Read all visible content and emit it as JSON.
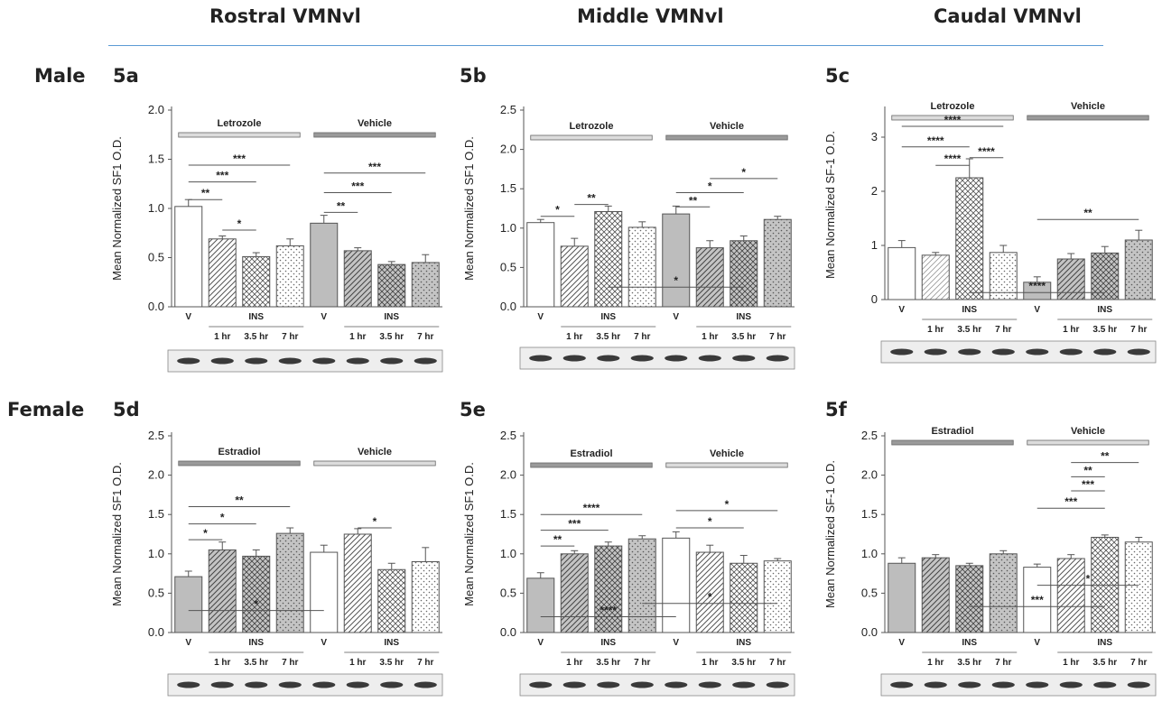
{
  "headers": [
    "Rostral VMNvl",
    "Middle VMNvl",
    "Caudal VMNvl"
  ],
  "row_labels": [
    "Male",
    "Female"
  ],
  "panel_labels": [
    "5a",
    "5b",
    "5c",
    "5d",
    "5e",
    "5f"
  ],
  "colors": {
    "divider": "#5b9bd5",
    "bar_outline": "#555555",
    "gray_fill": "#bdbdbd"
  },
  "chart_data": [
    {
      "type": "bar",
      "title": "",
      "ylabel": "Mean Normalized SF1 O.D.",
      "ylim": [
        0,
        2.0
      ],
      "yticks": [
        "0.0",
        "0.5",
        "1.0",
        "1.5",
        "2.0"
      ],
      "ytick_values": [
        0,
        0.5,
        1.0,
        1.5,
        2.0
      ],
      "categories": [
        "V",
        "1 hr",
        "3.5 hr",
        "7 hr",
        "V",
        "1 hr",
        "3.5 hr",
        "7 hr"
      ],
      "group_label": "INS",
      "values": [
        1.02,
        0.69,
        0.51,
        0.62,
        0.85,
        0.57,
        0.43,
        0.45
      ],
      "errors": [
        0.07,
        0.03,
        0.04,
        0.07,
        0.08,
        0.03,
        0.03,
        0.08
      ],
      "patterns": [
        "white",
        "diag",
        "cross",
        "dots",
        "gray",
        "graydiag",
        "graycross",
        "graydots"
      ],
      "treatments": [
        {
          "name": "Letrozole",
          "shade": "light"
        },
        {
          "name": "Vehicle",
          "shade": "dark"
        }
      ],
      "significance": [
        {
          "from": 0,
          "to": 1,
          "label": "**",
          "y": 1.09
        },
        {
          "from": 1,
          "to": 2,
          "label": "*",
          "y": 0.78
        },
        {
          "from": 0,
          "to": 2,
          "label": "***",
          "y": 1.27
        },
        {
          "from": 0,
          "to": 3,
          "label": "***",
          "y": 1.44
        },
        {
          "from": 4,
          "to": 5,
          "label": "**",
          "y": 0.96
        },
        {
          "from": 4,
          "to": 6,
          "label": "***",
          "y": 1.16
        },
        {
          "from": 4,
          "to": 7,
          "label": "***",
          "y": 1.36
        }
      ]
    },
    {
      "type": "bar",
      "title": "",
      "ylabel": "Mean Normalized SF1 O.D.",
      "ylim": [
        0,
        2.5
      ],
      "yticks": [
        "0.0",
        "0.5",
        "1.0",
        "1.5",
        "2.0",
        "2.5"
      ],
      "ytick_values": [
        0,
        0.5,
        1.0,
        1.5,
        2.0,
        2.5
      ],
      "categories": [
        "V",
        "1 hr",
        "3.5 hr",
        "7 hr",
        "V",
        "1 hr",
        "3.5 hr",
        "7 hr"
      ],
      "group_label": "INS",
      "values": [
        1.07,
        0.77,
        1.21,
        1.01,
        1.18,
        0.75,
        0.84,
        1.11
      ],
      "errors": [
        0.04,
        0.1,
        0.07,
        0.07,
        0.1,
        0.09,
        0.06,
        0.04
      ],
      "patterns": [
        "white",
        "diag",
        "cross",
        "dots",
        "gray",
        "graydiag",
        "graycross",
        "graydots"
      ],
      "treatments": [
        {
          "name": "Letrozole",
          "shade": "light"
        },
        {
          "name": "Vehicle",
          "shade": "dark"
        }
      ],
      "significance": [
        {
          "from": 0,
          "to": 1,
          "label": "*",
          "y": 1.15
        },
        {
          "from": 1,
          "to": 2,
          "label": "**",
          "y": 1.3
        },
        {
          "from": 4,
          "to": 5,
          "label": "**",
          "y": 1.27
        },
        {
          "from": 4,
          "to": 6,
          "label": "*",
          "y": 1.45
        },
        {
          "from": 5,
          "to": 7,
          "label": "*",
          "y": 1.63
        },
        {
          "from": 2,
          "to": 6,
          "label": "*",
          "y": 0.25
        }
      ]
    },
    {
      "type": "bar",
      "title": "",
      "ylabel": "Mean Normalized SF-1 O.D.",
      "ylim": [
        0,
        3.5
      ],
      "yticks": [
        "0",
        "1",
        "2",
        "3"
      ],
      "ytick_values": [
        0,
        1,
        2,
        3
      ],
      "categories": [
        "V",
        "1 hr",
        "3.5 hr",
        "7 hr",
        "V",
        "1 hr",
        "3.5 hr",
        "7 hr"
      ],
      "group_label": "INS",
      "values": [
        0.96,
        0.82,
        2.25,
        0.87,
        0.32,
        0.75,
        0.86,
        1.1
      ],
      "errors": [
        0.13,
        0.05,
        0.35,
        0.13,
        0.1,
        0.1,
        0.12,
        0.18
      ],
      "patterns": [
        "white",
        "lightdiag",
        "cross",
        "dots",
        "gray",
        "graydiag",
        "graycross",
        "graydots"
      ],
      "treatments": [
        {
          "name": "Letrozole",
          "shade": "light"
        },
        {
          "name": "Vehicle",
          "shade": "dark"
        }
      ],
      "significance": [
        {
          "from": 0,
          "to": 2,
          "label": "****",
          "y": 2.82
        },
        {
          "from": 1,
          "to": 2,
          "label": "****",
          "y": 2.48
        },
        {
          "from": 2,
          "to": 3,
          "label": "****",
          "y": 2.62
        },
        {
          "from": 0,
          "to": 3,
          "label": "****",
          "y": 3.2
        },
        {
          "from": 4,
          "to": 7,
          "label": "**",
          "y": 1.48
        },
        {
          "from": 2,
          "to": 6,
          "label": "****",
          "y": 0.13
        }
      ]
    },
    {
      "type": "bar",
      "title": "",
      "ylabel": "Mean Normalized SF1 O.D.",
      "ylim": [
        0,
        2.5
      ],
      "yticks": [
        "0.0",
        "0.5",
        "1.0",
        "1.5",
        "2.0",
        "2.5"
      ],
      "ytick_values": [
        0,
        0.5,
        1.0,
        1.5,
        2.0,
        2.5
      ],
      "categories": [
        "V",
        "1 hr",
        "3.5 hr",
        "7 hr",
        "V",
        "1 hr",
        "3.5 hr",
        "7 hr"
      ],
      "group_label": "INS",
      "values": [
        0.71,
        1.05,
        0.97,
        1.26,
        1.02,
        1.25,
        0.8,
        0.9
      ],
      "errors": [
        0.07,
        0.1,
        0.08,
        0.07,
        0.09,
        0.07,
        0.08,
        0.18
      ],
      "patterns": [
        "gray",
        "graydiag",
        "graycross",
        "graydots",
        "white",
        "diag",
        "cross",
        "dots"
      ],
      "treatments": [
        {
          "name": "Estradiol",
          "shade": "dark"
        },
        {
          "name": "Vehicle",
          "shade": "light"
        }
      ],
      "significance": [
        {
          "from": 0,
          "to": 1,
          "label": "*",
          "y": 1.18
        },
        {
          "from": 0,
          "to": 2,
          "label": "*",
          "y": 1.38
        },
        {
          "from": 0,
          "to": 3,
          "label": "**",
          "y": 1.6
        },
        {
          "from": 5,
          "to": 6,
          "label": "*",
          "y": 1.33
        },
        {
          "from": 0,
          "to": 4,
          "label": "*",
          "y": 0.28
        }
      ]
    },
    {
      "type": "bar",
      "title": "",
      "ylabel": "Mean Normalized SF1 O.D.",
      "ylim": [
        0,
        2.5
      ],
      "yticks": [
        "0.0",
        "0.5",
        "1.0",
        "1.5",
        "2.0",
        "2.5"
      ],
      "ytick_values": [
        0,
        0.5,
        1.0,
        1.5,
        2.0,
        2.5
      ],
      "categories": [
        "V",
        "1 hr",
        "3.5 hr",
        "7 hr",
        "V",
        "1 hr",
        "3.5 hr",
        "7 hr"
      ],
      "group_label": "INS",
      "values": [
        0.69,
        1.0,
        1.1,
        1.19,
        1.2,
        1.02,
        0.88,
        0.91
      ],
      "errors": [
        0.07,
        0.04,
        0.05,
        0.04,
        0.08,
        0.09,
        0.1,
        0.03
      ],
      "patterns": [
        "gray",
        "graydiag",
        "graycross",
        "graydots",
        "white",
        "diag",
        "cross",
        "dots"
      ],
      "treatments": [
        {
          "name": "Estradiol",
          "shade": "dark"
        },
        {
          "name": "Vehicle",
          "shade": "light"
        }
      ],
      "significance": [
        {
          "from": 0,
          "to": 1,
          "label": "**",
          "y": 1.1
        },
        {
          "from": 0,
          "to": 2,
          "label": "***",
          "y": 1.3
        },
        {
          "from": 0,
          "to": 3,
          "label": "****",
          "y": 1.5
        },
        {
          "from": 4,
          "to": 6,
          "label": "*",
          "y": 1.33
        },
        {
          "from": 4,
          "to": 7,
          "label": "*",
          "y": 1.55
        },
        {
          "from": 0,
          "to": 4,
          "label": "****",
          "y": 0.2
        },
        {
          "from": 3,
          "to": 7,
          "label": "*",
          "y": 0.37
        }
      ]
    },
    {
      "type": "bar",
      "title": "",
      "ylabel": "Mean Normalized SF-1 O.D.",
      "ylim": [
        0,
        2.5
      ],
      "yticks": [
        "0.0",
        "0.5",
        "1.0",
        "1.5",
        "2.0",
        "2.5"
      ],
      "ytick_values": [
        0,
        0.5,
        1.0,
        1.5,
        2.0,
        2.5
      ],
      "categories": [
        "V",
        "1 hr",
        "3.5 hr",
        "7 hr",
        "V",
        "1 hr",
        "3.5 hr",
        "7 hr"
      ],
      "group_label": "INS",
      "values": [
        0.88,
        0.95,
        0.85,
        1.0,
        0.83,
        0.94,
        1.21,
        1.15
      ],
      "errors": [
        0.07,
        0.04,
        0.03,
        0.04,
        0.04,
        0.05,
        0.03,
        0.06
      ],
      "patterns": [
        "gray",
        "graydiag",
        "graycross",
        "graydots",
        "white",
        "diag",
        "cross",
        "dots"
      ],
      "treatments": [
        {
          "name": "Estradiol",
          "shade": "dark"
        },
        {
          "name": "Vehicle",
          "shade": "light"
        }
      ],
      "significance": [
        {
          "from": 4,
          "to": 6,
          "label": "***",
          "y": 1.58
        },
        {
          "from": 5,
          "to": 6,
          "label": "***",
          "y": 1.8
        },
        {
          "from": 5,
          "to": 6,
          "label": "**",
          "y": 1.98
        },
        {
          "from": 5,
          "to": 7,
          "label": "**",
          "y": 2.16
        },
        {
          "from": 2,
          "to": 6,
          "label": "***",
          "y": 0.33
        },
        {
          "from": 4,
          "to": 7,
          "label": "*",
          "y": 0.6
        }
      ]
    }
  ]
}
